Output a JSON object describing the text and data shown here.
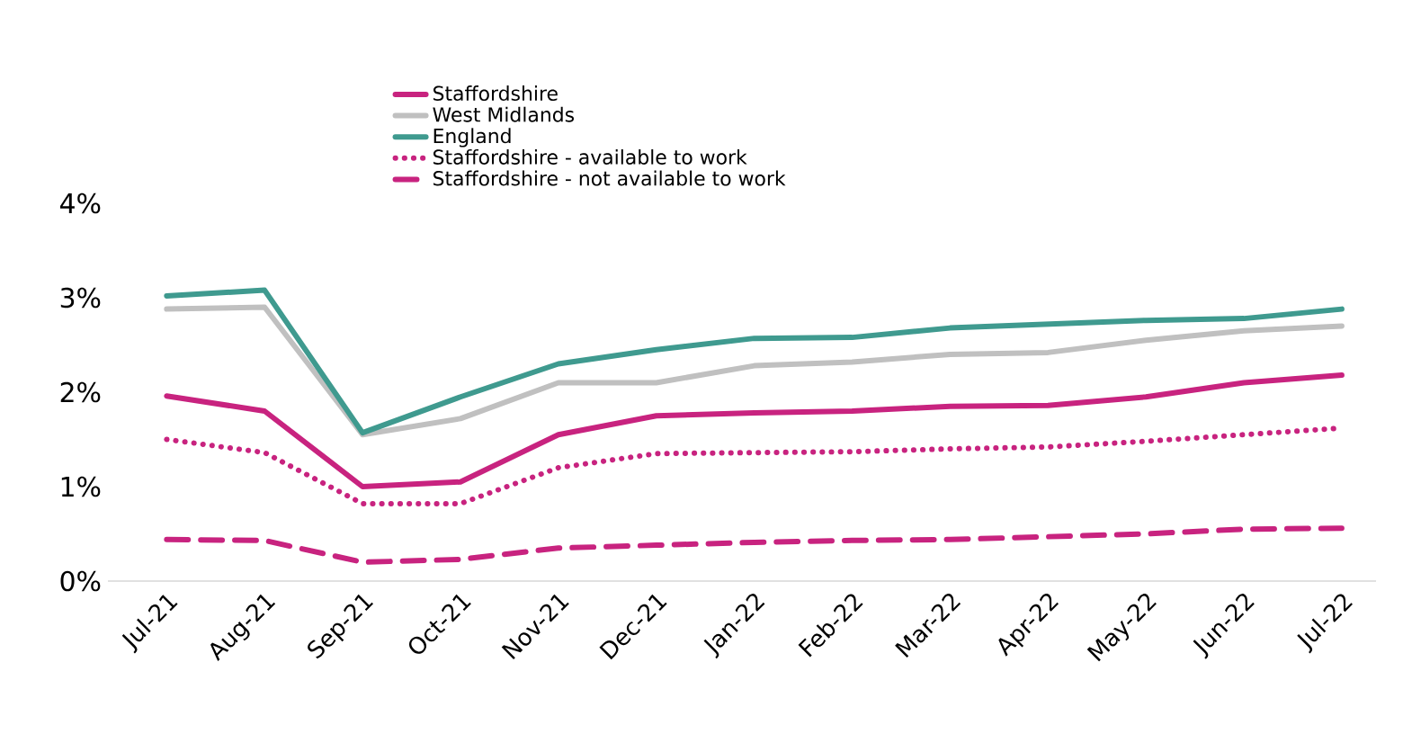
{
  "chart_data": {
    "type": "line",
    "categories": [
      "Jul-21",
      "Aug-21",
      "Sep-21",
      "Oct-21",
      "Nov-21",
      "Dec-21",
      "Jan-22",
      "Feb-22",
      "Mar-22",
      "Apr-22",
      "May-22",
      "Jun-22",
      "Jul-22"
    ],
    "series": [
      {
        "name": "Staffordshire",
        "color": "#c8237f",
        "line_style": "solid",
        "values": [
          1.96,
          1.8,
          1.0,
          1.05,
          1.55,
          1.75,
          1.78,
          1.8,
          1.85,
          1.86,
          1.95,
          2.1,
          2.18
        ]
      },
      {
        "name": "West Midlands",
        "color": "#c0c0c0",
        "line_style": "solid",
        "values": [
          2.88,
          2.9,
          1.55,
          1.72,
          2.1,
          2.1,
          2.28,
          2.32,
          2.4,
          2.42,
          2.55,
          2.65,
          2.7
        ]
      },
      {
        "name": "England",
        "color": "#3f9a8f",
        "line_style": "solid",
        "values": [
          3.02,
          3.08,
          1.57,
          1.95,
          2.3,
          2.45,
          2.57,
          2.58,
          2.68,
          2.72,
          2.76,
          2.78,
          2.88
        ]
      },
      {
        "name": "Staffordshire - available to work",
        "color": "#c8237f",
        "line_style": "dotted",
        "values": [
          1.5,
          1.36,
          0.82,
          0.82,
          1.2,
          1.35,
          1.36,
          1.37,
          1.4,
          1.42,
          1.48,
          1.55,
          1.62
        ]
      },
      {
        "name": "Staffordshire - not available to work",
        "color": "#c8237f",
        "line_style": "dashed",
        "values": [
          0.44,
          0.43,
          0.2,
          0.23,
          0.35,
          0.38,
          0.41,
          0.43,
          0.44,
          0.47,
          0.5,
          0.55,
          0.56
        ]
      }
    ],
    "ylim": [
      0,
      4
    ],
    "yticks": [
      {
        "value": 0,
        "label": "0%"
      },
      {
        "value": 1,
        "label": "1%"
      },
      {
        "value": 2,
        "label": "2%"
      },
      {
        "value": 3,
        "label": "3%"
      },
      {
        "value": 4,
        "label": "4%"
      }
    ],
    "legend": "top",
    "grid": false
  }
}
